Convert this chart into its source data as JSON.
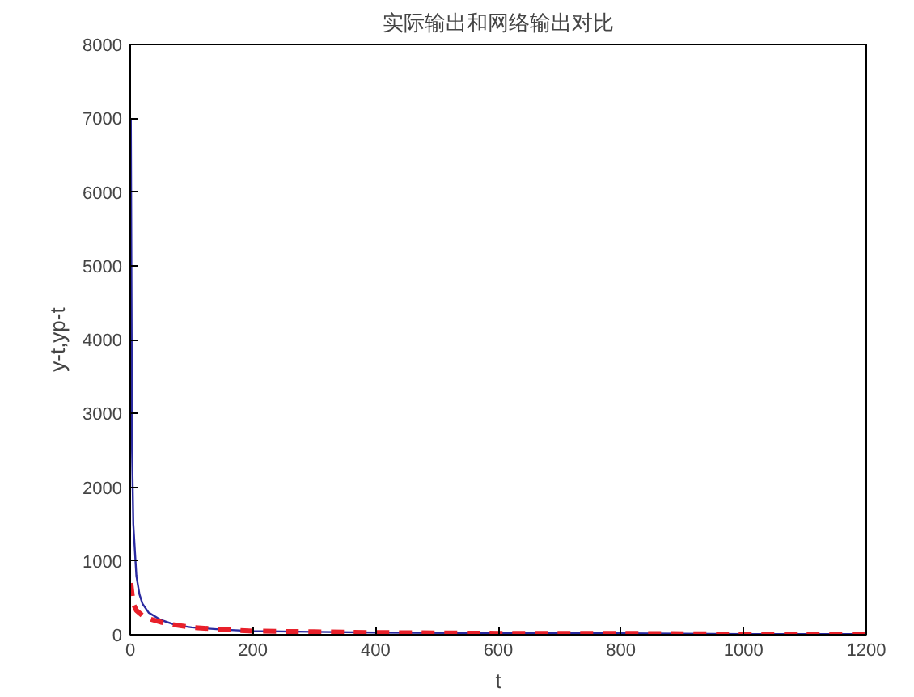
{
  "chart_data": {
    "type": "line",
    "title": "实际输出和网络输出对比",
    "xlabel": "t",
    "ylabel": "y-t,yp-t",
    "xlim": [
      0,
      1200
    ],
    "ylim": [
      0,
      8000
    ],
    "xticks": [
      0,
      200,
      400,
      600,
      800,
      1000,
      1200
    ],
    "yticks": [
      0,
      1000,
      2000,
      3000,
      4000,
      5000,
      6000,
      7000,
      8000
    ],
    "grid": false,
    "series": [
      {
        "color": "#2a2aa0",
        "line_style": "solid",
        "x": [
          1,
          3,
          5,
          10,
          15,
          20,
          30,
          50,
          75,
          100,
          150,
          200,
          300,
          400,
          600,
          800,
          1000,
          1200
        ],
        "values": [
          7000,
          2500,
          1500,
          800,
          550,
          420,
          300,
          200,
          130,
          100,
          70,
          50,
          40,
          30,
          20,
          20,
          10,
          10
        ]
      },
      {
        "color": "#e8202a",
        "line_style": "dashed",
        "x": [
          1,
          5,
          10,
          20,
          30,
          50,
          75,
          100,
          150,
          200,
          300,
          400,
          600,
          800,
          1000,
          1200
        ],
        "values": [
          700,
          420,
          330,
          260,
          220,
          170,
          130,
          100,
          70,
          50,
          40,
          30,
          20,
          20,
          10,
          10
        ]
      }
    ]
  }
}
